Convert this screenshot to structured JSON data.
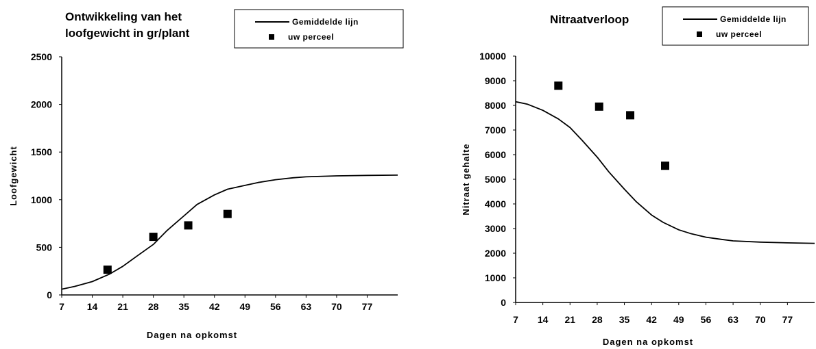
{
  "chart_data": [
    {
      "type": "line",
      "title": "Ontwikkeling van het loofgewicht in gr/plant",
      "title_lines": [
        "Ontwikkeling van het",
        "loofgewicht in gr/plant"
      ],
      "xlabel": "Dagen na opkomst",
      "ylabel": "Loofgewicht",
      "xlim": [
        7,
        84
      ],
      "ylim": [
        0,
        2500
      ],
      "x_ticks": [
        "7",
        "14",
        "21",
        "28",
        "35",
        "42",
        "49",
        "56",
        "63",
        "70",
        "77"
      ],
      "y_ticks": [
        "0",
        "500",
        "1000",
        "1500",
        "2000",
        "2500"
      ],
      "grid": false,
      "legend_position": "top-right",
      "series": [
        {
          "name": "Gemiddelde lijn",
          "kind": "line",
          "x": [
            7,
            10,
            14,
            18,
            21,
            24,
            28,
            31,
            35,
            38,
            42,
            45,
            49,
            52,
            56,
            60,
            63,
            70,
            77,
            84
          ],
          "y": [
            60,
            90,
            140,
            220,
            300,
            400,
            530,
            670,
            830,
            950,
            1050,
            1110,
            1150,
            1180,
            1210,
            1230,
            1240,
            1250,
            1255,
            1258
          ]
        },
        {
          "name": "uw perceel",
          "kind": "marker",
          "x": [
            17.5,
            28,
            36,
            45
          ],
          "y": [
            265,
            610,
            730,
            850
          ]
        }
      ]
    },
    {
      "type": "line",
      "title": "Nitraatverloop",
      "title_lines": [
        "Nitraatverloop"
      ],
      "xlabel": "Dagen na opkomst",
      "ylabel": "Nitraat gehalte",
      "xlim": [
        7,
        84
      ],
      "ylim": [
        0,
        10000
      ],
      "x_ticks": [
        "7",
        "14",
        "21",
        "28",
        "35",
        "42",
        "49",
        "56",
        "63",
        "70",
        "77"
      ],
      "y_ticks": [
        "0",
        "1000",
        "2000",
        "3000",
        "4000",
        "5000",
        "6000",
        "7000",
        "8000",
        "9000",
        "10000"
      ],
      "grid": false,
      "legend_position": "top-right",
      "series": [
        {
          "name": "Gemiddelde lijn",
          "kind": "line",
          "x": [
            7,
            10,
            14,
            18,
            21,
            24,
            28,
            31,
            35,
            38,
            42,
            45,
            49,
            52,
            56,
            60,
            63,
            70,
            77,
            84
          ],
          "y": [
            8150,
            8050,
            7800,
            7450,
            7100,
            6600,
            5900,
            5300,
            4600,
            4100,
            3550,
            3250,
            2950,
            2800,
            2650,
            2560,
            2500,
            2450,
            2420,
            2400
          ]
        },
        {
          "name": "uw perceel",
          "kind": "marker",
          "x": [
            18,
            28.5,
            36.5,
            45.5
          ],
          "y": [
            8800,
            7950,
            7600,
            5550
          ]
        }
      ]
    }
  ]
}
